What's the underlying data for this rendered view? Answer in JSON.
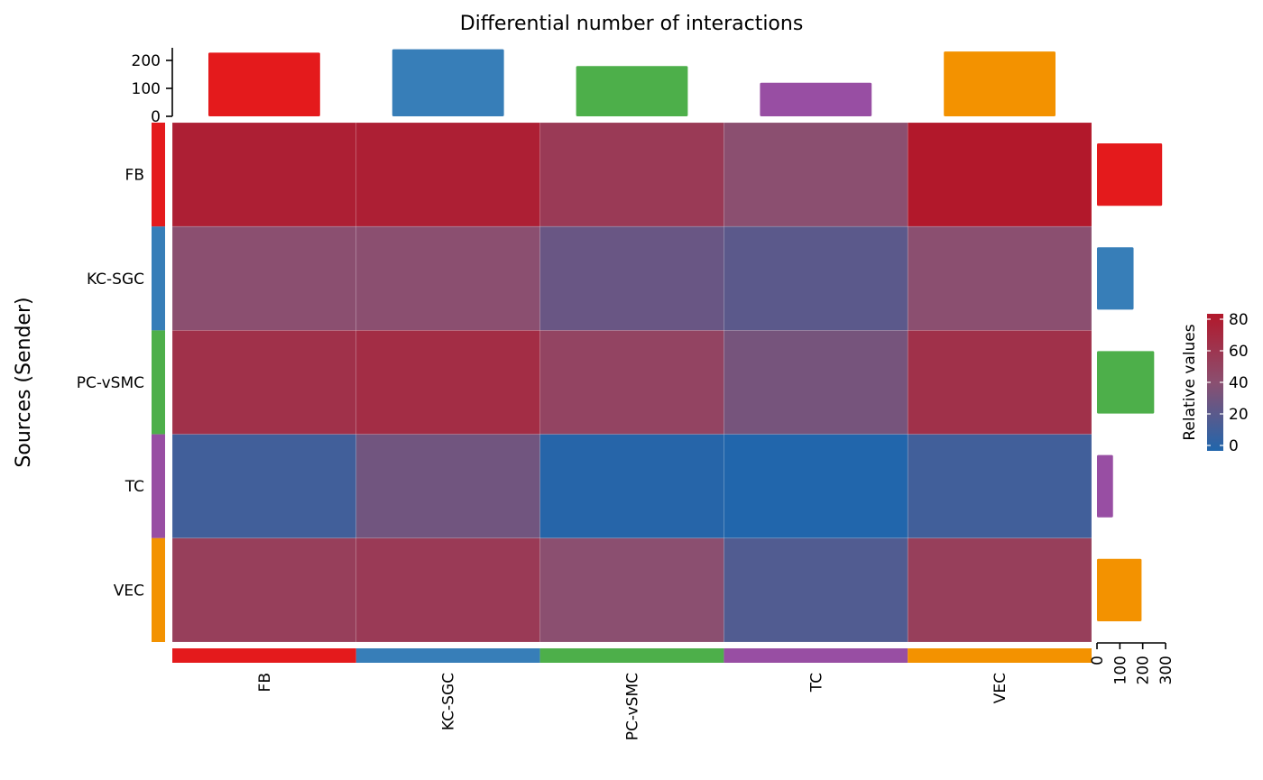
{
  "chart_data": {
    "type": "heatmap",
    "title": "Differential number of interactions",
    "ylabel": "Sources (Sender)",
    "rows": [
      "FB",
      "KC-SGC",
      "PC-vSMC",
      "TC",
      "VEC"
    ],
    "cols": [
      "FB",
      "KC-SGC",
      "PC-vSMC",
      "TC",
      "VEC"
    ],
    "values": [
      [
        75,
        75,
        55,
        40,
        80
      ],
      [
        40,
        40,
        27,
        22,
        40
      ],
      [
        62,
        65,
        48,
        32,
        62
      ],
      [
        12,
        30,
        2,
        0,
        12
      ],
      [
        52,
        55,
        40,
        18,
        52
      ]
    ],
    "group_colors": [
      "#E41A1C",
      "#377EB8",
      "#4DAF4A",
      "#984EA3",
      "#F39200"
    ],
    "col_sums": {
      "values": [
        228,
        240,
        180,
        120,
        232
      ],
      "ylim": [
        0,
        250
      ],
      "ticks": [
        "0",
        "100",
        "200"
      ]
    },
    "row_sums": {
      "values": [
        285,
        160,
        250,
        70,
        195
      ],
      "xlim": [
        0,
        300
      ],
      "ticks": [
        "0",
        "100",
        "200",
        "300"
      ]
    },
    "legend": {
      "title": "Relative values",
      "ticks": [
        "0",
        "20",
        "40",
        "60",
        "80"
      ],
      "range": [
        0,
        80
      ],
      "low_color": "#2166AC",
      "mid_color": "#8B4F70",
      "high_color": "#B2182B"
    }
  }
}
